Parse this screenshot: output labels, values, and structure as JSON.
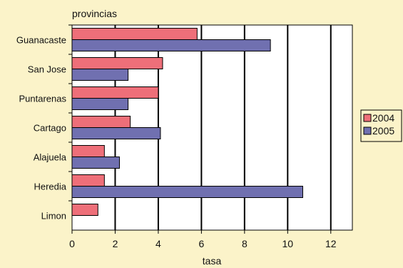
{
  "chart_data": {
    "type": "bar",
    "orientation": "horizontal",
    "categories": [
      "Guanacaste",
      "San Jose",
      "Puntarenas",
      "Cartago",
      "Alajuela",
      "Heredia",
      "Limon"
    ],
    "series": [
      {
        "name": "2004",
        "values": [
          5.8,
          4.2,
          4.0,
          2.7,
          1.5,
          1.5,
          1.2
        ]
      },
      {
        "name": "2005",
        "values": [
          9.2,
          2.6,
          2.6,
          4.1,
          2.2,
          10.7,
          null
        ]
      }
    ],
    "xlabel": "tasa",
    "ylabel": "provincias",
    "xlim": [
      0,
      13
    ],
    "xticks": [
      0,
      2,
      4,
      6,
      8,
      10,
      12
    ],
    "grid": "vertical",
    "legend_position": "right",
    "colors": {
      "background": "#fbf3c9",
      "plot_background": "#ffffff",
      "series_2004": "#ee6f79",
      "series_2005": "#7070b0",
      "grid": "#000000"
    }
  }
}
